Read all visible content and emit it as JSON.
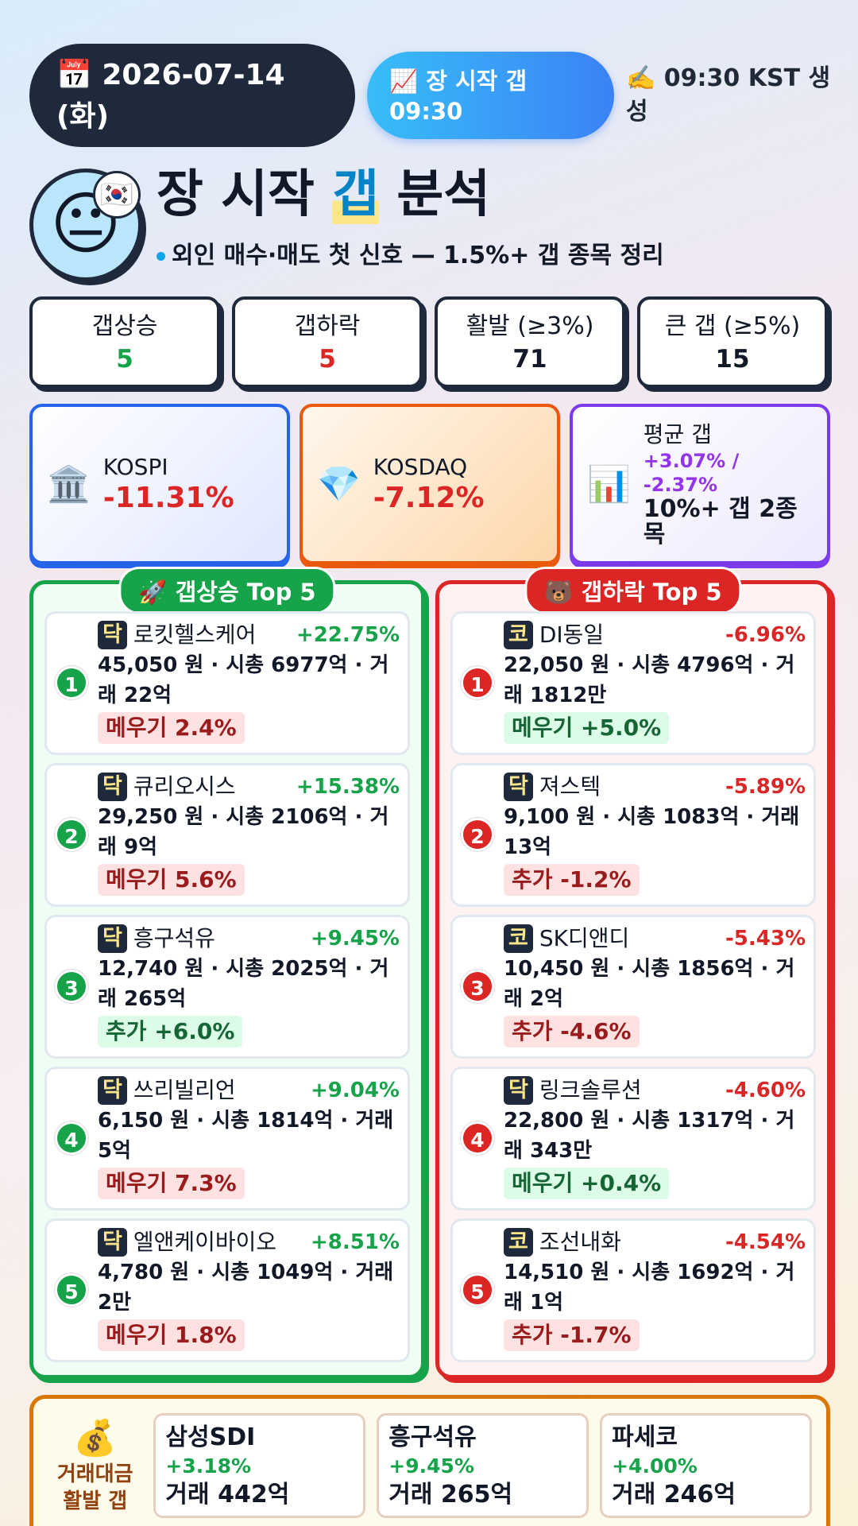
{
  "header": {
    "date_icon": "📅",
    "date": "2026-07-14 (화)",
    "badge_icon": "📈",
    "badge": "장 시작 갭 09:30",
    "generated": "✍️ 09:30 KST 생성"
  },
  "title": {
    "avatar": "😐",
    "flag": "🇰🇷",
    "pre": "장 시작",
    "highlight": "갭",
    "post": "분석",
    "subtitle": "외인 매수·매도 첫 신호 — 1.5%+ 갭 종목 정리"
  },
  "stats": [
    {
      "label": "갭상승",
      "value": 5,
      "color": "#16a34a"
    },
    {
      "label": "갭하락",
      "value": 5,
      "color": "#dc2626"
    },
    {
      "label": "활발 (≥3%)",
      "value": 71,
      "color": "#111827"
    },
    {
      "label": "큰 갭 (≥5%)",
      "value": 15,
      "color": "#111827"
    }
  ],
  "indices": [
    {
      "icon": "🏛️",
      "name": "KOSPI",
      "change": "-11.31%"
    },
    {
      "icon": "💎",
      "name": "KOSDAQ",
      "change": "-7.12%"
    }
  ],
  "average": {
    "icon": "📊",
    "label": "평균 갭",
    "value": "+3.07% / -2.37%",
    "note": "10%+ 갭 2종목"
  },
  "gainers": {
    "title": "🚀 갭상승 Top 5",
    "items": [
      {
        "rank": 1,
        "market": "닥",
        "name": "로킷헬스케어",
        "change": "+22.75%",
        "detail": "45,050 원 · 시총 6977억 · 거래 22억",
        "tag": "메우기 2.4%",
        "tag_color": "red"
      },
      {
        "rank": 2,
        "market": "닥",
        "name": "큐리오시스",
        "change": "+15.38%",
        "detail": "29,250 원 · 시총 2106억 · 거래 9억",
        "tag": "메우기 5.6%",
        "tag_color": "red"
      },
      {
        "rank": 3,
        "market": "닥",
        "name": "흥구석유",
        "change": "+9.45%",
        "detail": "12,740 원 · 시총 2025억 · 거래 265억",
        "tag": "추가 +6.0%",
        "tag_color": "green"
      },
      {
        "rank": 4,
        "market": "닥",
        "name": "쓰리빌리언",
        "change": "+9.04%",
        "detail": "6,150 원 · 시총 1814억 · 거래 5억",
        "tag": "메우기 7.3%",
        "tag_color": "red"
      },
      {
        "rank": 5,
        "market": "닥",
        "name": "엘앤케이바이오",
        "change": "+8.51%",
        "detail": "4,780 원 · 시총 1049억 · 거래 2만",
        "tag": "메우기 1.8%",
        "tag_color": "red"
      }
    ]
  },
  "losers": {
    "title": "🐻 갭하락 Top 5",
    "items": [
      {
        "rank": 1,
        "market": "코",
        "name": "DI동일",
        "change": "-6.96%",
        "detail": "22,050 원 · 시총 4796억 · 거래 1812만",
        "tag": "메우기 +5.0%",
        "tag_color": "green"
      },
      {
        "rank": 2,
        "market": "닥",
        "name": "져스텍",
        "change": "-5.89%",
        "detail": "9,100 원 · 시총 1083억 · 거래 13억",
        "tag": "추가 -1.2%",
        "tag_color": "red"
      },
      {
        "rank": 3,
        "market": "코",
        "name": "SK디앤디",
        "change": "-5.43%",
        "detail": "10,450 원 · 시총 1856억 · 거래 2억",
        "tag": "추가 -4.6%",
        "tag_color": "red"
      },
      {
        "rank": 4,
        "market": "닥",
        "name": "링크솔루션",
        "change": "-4.60%",
        "detail": "22,800 원 · 시총 1317억 · 거래 343만",
        "tag": "메우기 +0.4%",
        "tag_color": "green"
      },
      {
        "rank": 5,
        "market": "코",
        "name": "조선내화",
        "change": "-4.54%",
        "detail": "14,510 원 · 시총 1692억 · 거래 1억",
        "tag": "추가 -1.7%",
        "tag_color": "red"
      }
    ]
  },
  "volume": {
    "icon": "💰",
    "label": "거래대금 활발 갭",
    "items": [
      {
        "name": "삼성SDI",
        "change": "+3.18%",
        "volume": "거래 442억"
      },
      {
        "name": "흥구석유",
        "change": "+9.45%",
        "volume": "거래 265억"
      },
      {
        "name": "파세코",
        "change": "+4.00%",
        "volume": "거래 246억"
      }
    ]
  }
}
